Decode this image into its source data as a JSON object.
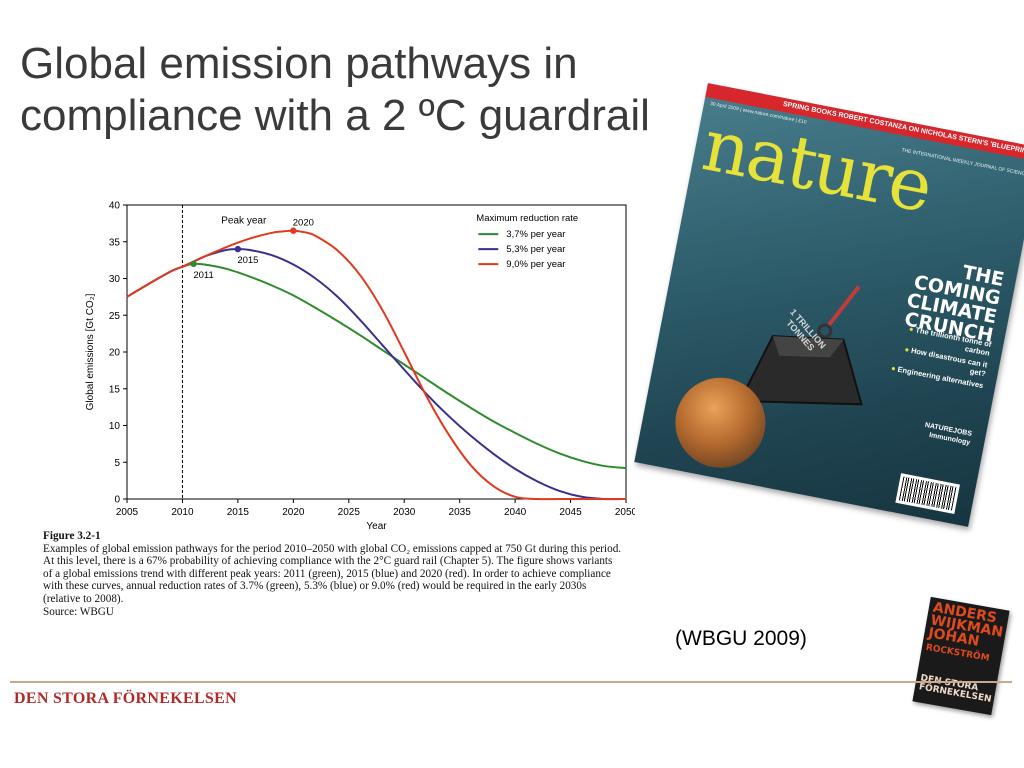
{
  "slide": {
    "title_line1": "Global emission pathways in",
    "title_line2": "compliance with a 2 ºC guardrail",
    "citation": "(WBGU 2009)",
    "footer_brand": "DEN STORA FÖRNEKELSEN",
    "colors": {
      "title": "#3a3a3a",
      "footer_brand": "#b12a2a",
      "divider": "#c9a88c"
    }
  },
  "caption": {
    "title": "Figure 3.2-1",
    "lines": [
      "Examples of global emission pathways for the period 2010–2050 with global CO₂ emissions capped at 750 Gt during this period.",
      "At this level, there is a 67% probability of achieving compliance with the 2°C guard rail (Chapter 5). The figure shows variants",
      "of a global emissions trend with different peak years: 2011 (green), 2015 (blue) and 2020 (red). In order to achieve compliance",
      "with these curves, annual reduction rates of 3.7% (green), 5.3% (blue) or 9.0% (red) would be required in the early 2030s",
      "(relative to 2008).",
      "Source: WBGU"
    ]
  },
  "chart_data": {
    "type": "line",
    "title": "",
    "xlabel": "Year",
    "ylabel": "Global emissions [Gt CO₂]",
    "xlim": [
      2005,
      2050
    ],
    "ylim": [
      0,
      40
    ],
    "xticks": [
      "2005",
      "2010",
      "2015",
      "2020",
      "2025",
      "2030",
      "2035",
      "2040",
      "2045",
      "2050"
    ],
    "yticks": [
      "0",
      "5",
      "10",
      "15",
      "20",
      "25",
      "30",
      "35",
      "40"
    ],
    "grid": false,
    "legend_title": "Maximum reduction rate",
    "legend_position": "top-right",
    "annotation_peak_year": "Peak year",
    "reference_line_x": 2010,
    "series": [
      {
        "name": "3,7% per year",
        "color": "#2e8b2e",
        "peak": {
          "x": 2011,
          "y": 32,
          "label": "2011"
        },
        "x": [
          2005,
          2007,
          2009,
          2010,
          2011,
          2012,
          2014,
          2016,
          2018,
          2020,
          2022,
          2024,
          2026,
          2028,
          2030,
          2032,
          2034,
          2036,
          2038,
          2040,
          2042,
          2044,
          2046,
          2048,
          2050
        ],
        "y": [
          27.5,
          29.3,
          31.0,
          31.6,
          32.0,
          31.9,
          31.3,
          30.3,
          29.1,
          27.7,
          26.0,
          24.2,
          22.3,
          20.3,
          18.3,
          16.3,
          14.3,
          12.4,
          10.6,
          9.0,
          7.5,
          6.2,
          5.2,
          4.5,
          4.2
        ]
      },
      {
        "name": "5,3% per year",
        "color": "#3a2f8e",
        "peak": {
          "x": 2015,
          "y": 34,
          "label": "2015"
        },
        "x": [
          2005,
          2007,
          2009,
          2010,
          2011,
          2012,
          2013,
          2014,
          2015,
          2016,
          2018,
          2020,
          2022,
          2024,
          2026,
          2028,
          2030,
          2032,
          2034,
          2036,
          2038,
          2040,
          2042,
          2044,
          2046,
          2048,
          2050
        ],
        "y": [
          27.5,
          29.3,
          31.0,
          31.6,
          32.3,
          33.0,
          33.5,
          33.9,
          34.0,
          33.9,
          33.2,
          31.9,
          30.0,
          27.5,
          24.4,
          21.0,
          17.6,
          14.3,
          11.3,
          8.6,
          6.2,
          4.1,
          2.4,
          1.1,
          0.3,
          0.0,
          0.0
        ]
      },
      {
        "name": "9,0% per year",
        "color": "#e03a1e",
        "peak": {
          "x": 2020,
          "y": 36.5,
          "label": "2020"
        },
        "x": [
          2005,
          2007,
          2009,
          2010,
          2011,
          2012,
          2014,
          2016,
          2018,
          2019,
          2020,
          2021,
          2022,
          2024,
          2026,
          2028,
          2030,
          2032,
          2034,
          2036,
          2038,
          2040,
          2042,
          2044,
          2046,
          2048,
          2050
        ],
        "y": [
          27.5,
          29.3,
          31.0,
          31.6,
          32.3,
          33.0,
          34.3,
          35.4,
          36.2,
          36.4,
          36.5,
          36.3,
          35.8,
          33.8,
          30.5,
          25.8,
          20.0,
          14.0,
          8.8,
          4.6,
          1.8,
          0.3,
          0.0,
          0.0,
          0.0,
          0.0,
          0.0
        ]
      }
    ]
  },
  "magazine": {
    "masthead": "nature",
    "top_banner": "SPRING BOOKS ROBERT COSTANZA ON NICHOLAS STERN'S 'BLUEPRINT'",
    "issue_line": "30 April 2009 | www.nature.com/nature | £10",
    "tagline": "THE INTERNATIONAL WEEKLY JOURNAL OF SCIENCE",
    "headline": [
      "THE",
      "COMING",
      "CLIMATE",
      "CRUNCH"
    ],
    "bullets": [
      "The trillionth tonne of carbon",
      "How disastrous can it get?",
      "Engineering alternatives"
    ],
    "weight_label": "1 TRILLION TONNES",
    "jobs_line1": "NATUREJOBS",
    "jobs_line2": "Immunology",
    "colors": {
      "masthead": "#e6e23a",
      "banner": "#d7262c",
      "background": "#2e5d6b"
    }
  },
  "book": {
    "authors": [
      "ANDERS",
      "WIJKMAN",
      "JOHAN",
      "ROCKSTRÖM"
    ],
    "title": [
      "DEN STORA",
      "FÖRNEKELSEN"
    ],
    "colors": {
      "authors": "#e04a1e",
      "background": "#1a1a1a"
    }
  }
}
